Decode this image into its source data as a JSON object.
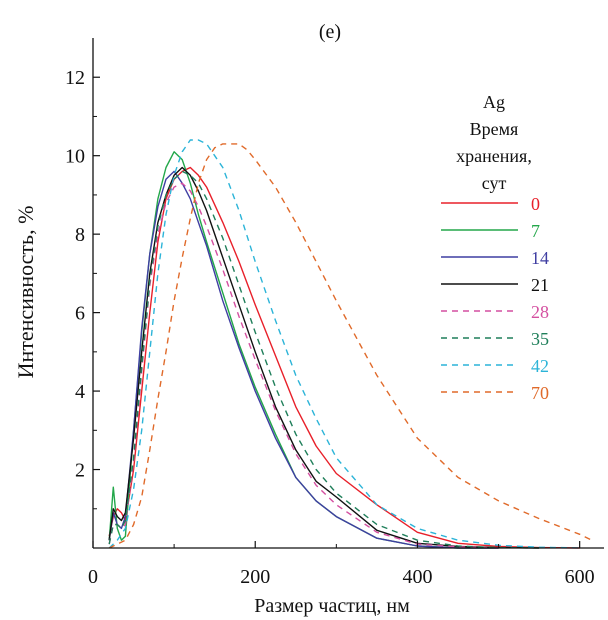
{
  "chart_data": {
    "type": "line",
    "panel_label": "(e)",
    "xlabel": "Размер частиц, нм",
    "ylabel": "Интенсивность, %",
    "xlim": [
      0,
      630
    ],
    "ylim": [
      0,
      13
    ],
    "xticks": [
      0,
      200,
      400,
      600
    ],
    "yticks": [
      2,
      4,
      6,
      8,
      10,
      12
    ],
    "grid": false,
    "legend": {
      "placement": "right",
      "title_lines": [
        "Ag",
        "Время",
        "хранения,",
        "сут"
      ]
    },
    "series": [
      {
        "name": "0",
        "color": "#e8202a",
        "dashed": false,
        "x": [
          20,
          25,
          30,
          35,
          40,
          50,
          60,
          70,
          80,
          90,
          100,
          110,
          120,
          130,
          140,
          160,
          180,
          200,
          225,
          250,
          275,
          300,
          350,
          400,
          450,
          500,
          550,
          600
        ],
        "y": [
          0.3,
          0.8,
          1.0,
          0.9,
          0.7,
          2.0,
          4.0,
          6.0,
          7.8,
          8.9,
          9.4,
          9.6,
          9.7,
          9.5,
          9.2,
          8.3,
          7.3,
          6.2,
          4.9,
          3.6,
          2.6,
          1.9,
          1.1,
          0.4,
          0.12,
          0.04,
          0.01,
          0.0
        ]
      },
      {
        "name": "7",
        "color": "#23a74a",
        "dashed": false,
        "x": [
          20,
          25,
          30,
          35,
          40,
          50,
          60,
          70,
          80,
          90,
          100,
          110,
          120,
          130,
          140,
          160,
          180,
          200,
          225,
          250,
          275,
          300,
          350,
          400,
          450,
          500
        ],
        "y": [
          0.2,
          1.55,
          0.5,
          0.2,
          0.3,
          3.0,
          5.5,
          7.5,
          8.9,
          9.7,
          10.1,
          9.9,
          9.3,
          8.5,
          7.8,
          6.5,
          5.2,
          4.1,
          2.9,
          1.8,
          1.2,
          0.8,
          0.25,
          0.05,
          0.0,
          0.0
        ]
      },
      {
        "name": "14",
        "color": "#3f3ea2",
        "dashed": false,
        "x": [
          20,
          25,
          30,
          35,
          40,
          50,
          60,
          70,
          80,
          90,
          100,
          110,
          120,
          130,
          140,
          160,
          180,
          200,
          225,
          250,
          275,
          300,
          350,
          400,
          450,
          500
        ],
        "y": [
          0.2,
          0.9,
          0.6,
          0.5,
          0.8,
          3.0,
          5.6,
          7.5,
          8.7,
          9.4,
          9.6,
          9.3,
          8.9,
          8.3,
          7.7,
          6.3,
          5.1,
          4.0,
          2.8,
          1.8,
          1.2,
          0.8,
          0.25,
          0.05,
          0.0,
          0.0
        ]
      },
      {
        "name": "21",
        "color": "#111111",
        "dashed": false,
        "x": [
          20,
          25,
          30,
          35,
          40,
          50,
          60,
          70,
          80,
          90,
          100,
          110,
          120,
          130,
          140,
          160,
          180,
          200,
          225,
          250,
          275,
          300,
          350,
          400,
          450,
          500,
          550
        ],
        "y": [
          0.2,
          1.0,
          0.8,
          0.7,
          0.9,
          2.8,
          5.0,
          7.0,
          8.3,
          9.0,
          9.5,
          9.7,
          9.5,
          9.1,
          8.6,
          7.4,
          6.2,
          5.0,
          3.6,
          2.5,
          1.7,
          1.3,
          0.45,
          0.12,
          0.04,
          0.01,
          0.0
        ]
      },
      {
        "name": "28",
        "color": "#d44fa0",
        "dashed": true,
        "x": [
          20,
          25,
          30,
          35,
          40,
          50,
          60,
          70,
          80,
          90,
          100,
          110,
          120,
          130,
          140,
          160,
          180,
          200,
          225,
          250,
          275,
          300,
          350,
          400,
          450,
          500
        ],
        "y": [
          0.1,
          0.6,
          0.6,
          0.5,
          0.6,
          2.2,
          4.5,
          6.7,
          8.0,
          8.8,
          9.2,
          9.3,
          9.1,
          8.7,
          8.2,
          7.1,
          5.9,
          4.8,
          3.5,
          2.4,
          1.6,
          1.1,
          0.4,
          0.1,
          0.03,
          0.0
        ]
      },
      {
        "name": "35",
        "color": "#1f7f5a",
        "dashed": true,
        "x": [
          20,
          25,
          30,
          35,
          40,
          50,
          60,
          70,
          80,
          90,
          100,
          110,
          120,
          130,
          140,
          160,
          180,
          200,
          225,
          250,
          275,
          300,
          350,
          400,
          450,
          500,
          550
        ],
        "y": [
          0.1,
          0.6,
          0.6,
          0.5,
          0.7,
          2.3,
          4.6,
          6.8,
          8.2,
          9.0,
          9.4,
          9.6,
          9.5,
          9.3,
          8.9,
          7.9,
          6.7,
          5.5,
          4.1,
          2.9,
          2.0,
          1.4,
          0.6,
          0.2,
          0.05,
          0.01,
          0.0
        ]
      },
      {
        "name": "42",
        "color": "#2cb4d8",
        "dashed": true,
        "x": [
          20,
          30,
          40,
          50,
          60,
          70,
          80,
          90,
          100,
          110,
          120,
          130,
          140,
          150,
          160,
          180,
          200,
          225,
          250,
          275,
          300,
          350,
          400,
          450,
          500,
          550,
          600
        ],
        "y": [
          0.0,
          0.2,
          0.5,
          1.5,
          3.0,
          5.0,
          7.0,
          8.5,
          9.5,
          10.1,
          10.4,
          10.4,
          10.3,
          10.0,
          9.7,
          8.6,
          7.3,
          5.8,
          4.4,
          3.3,
          2.3,
          1.1,
          0.5,
          0.2,
          0.07,
          0.02,
          0.0
        ]
      },
      {
        "name": "70",
        "color": "#e06a2a",
        "dashed": true,
        "x": [
          20,
          30,
          40,
          50,
          60,
          70,
          80,
          90,
          100,
          110,
          120,
          130,
          140,
          150,
          160,
          170,
          180,
          190,
          200,
          225,
          250,
          275,
          300,
          350,
          400,
          450,
          500,
          550,
          600,
          615
        ],
        "y": [
          0.0,
          0.1,
          0.2,
          0.6,
          1.3,
          2.5,
          3.8,
          5.0,
          6.3,
          7.4,
          8.4,
          9.3,
          9.9,
          10.2,
          10.3,
          10.3,
          10.3,
          10.15,
          9.9,
          9.2,
          8.3,
          7.3,
          6.3,
          4.4,
          2.8,
          1.8,
          1.2,
          0.75,
          0.35,
          0.2
        ]
      }
    ]
  }
}
